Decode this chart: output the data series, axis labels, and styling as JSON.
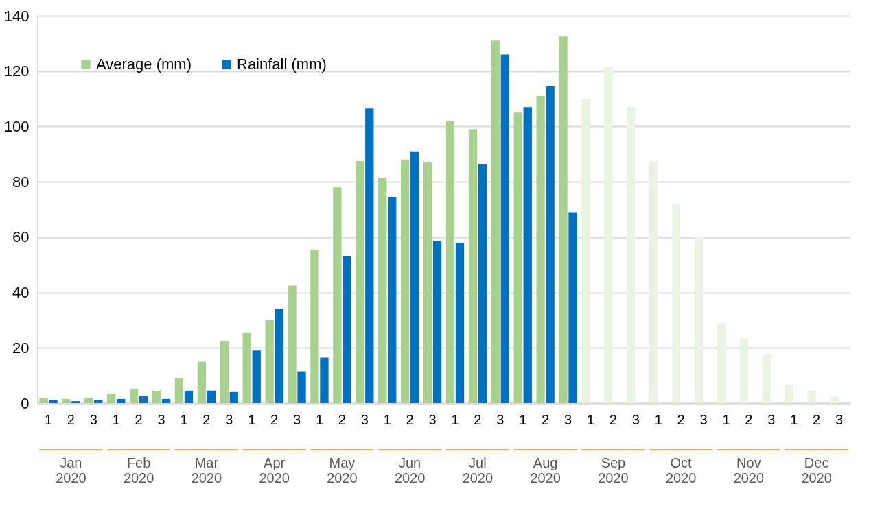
{
  "chart_data": {
    "type": "bar",
    "categories": [
      "1",
      "2",
      "3",
      "1",
      "2",
      "3",
      "1",
      "2",
      "3",
      "1",
      "2",
      "3",
      "1",
      "2",
      "3",
      "1",
      "2",
      "3",
      "1",
      "2",
      "3",
      "1",
      "2",
      "3",
      "1",
      "2",
      "3",
      "1",
      "2",
      "3",
      "1",
      "2",
      "3",
      "1",
      "2",
      "3"
    ],
    "series": [
      {
        "name": "Average (mm)",
        "color": "#a9d18e",
        "colors": [
          "#a9d18e",
          "#a9d18e",
          "#a9d18e",
          "#a9d18e",
          "#a9d18e",
          "#a9d18e",
          "#a9d18e",
          "#a9d18e",
          "#a9d18e",
          "#a9d18e",
          "#a9d18e",
          "#a9d18e",
          "#a9d18e",
          "#a9d18e",
          "#a9d18e",
          "#a9d18e",
          "#a9d18e",
          "#a9d18e",
          "#a9d18e",
          "#a9d18e",
          "#a9d18e",
          "#a9d18e",
          "#a9d18e",
          "#a9d18e",
          "#ebf3e3",
          "#ebf3e3",
          "#ebf3e3",
          "#ebf3e3",
          "#ebf3e3",
          "#ebf3e3",
          "#ebf3e3",
          "#ebf3e3",
          "#ebf3e3",
          "#ebf3e3",
          "#ebf3e3",
          "#ebf3e3"
        ],
        "values": [
          2,
          1.5,
          2,
          3.5,
          5,
          4.5,
          9,
          15,
          22.5,
          25.5,
          30,
          42.5,
          55.5,
          78,
          87.5,
          81.5,
          88,
          87,
          102,
          99,
          131,
          105,
          111,
          132.5,
          110,
          121.5,
          107,
          87.5,
          72,
          60,
          29,
          23.5,
          17.5,
          6.5,
          4.5,
          2.5
        ]
      },
      {
        "name": "Rainfall (mm)",
        "color": "#0070c0",
        "values": [
          1,
          0.7,
          1,
          1.5,
          2.5,
          1.5,
          4.5,
          4.5,
          4,
          19,
          34,
          11.5,
          16.5,
          53,
          106.5,
          74.5,
          91,
          58.5,
          58,
          86.5,
          126,
          107,
          114.5,
          69,
          null,
          null,
          null,
          null,
          null,
          null,
          null,
          null,
          null,
          null,
          null,
          null
        ]
      }
    ],
    "annotations": [
      "Jan 2020",
      "Feb 2020",
      "Mar 2020",
      "Apr 2020",
      "May 2020",
      "Jun 2020",
      "Jul 2020",
      "Aug 2020",
      "Sep 2020",
      "Oct 2020",
      "Nov 2020",
      "Dec 2020"
    ],
    "ylim": [
      0,
      140
    ],
    "yticks": [
      0,
      20,
      40,
      60,
      80,
      100,
      120,
      140
    ],
    "grid": "y",
    "legend": "top left"
  }
}
